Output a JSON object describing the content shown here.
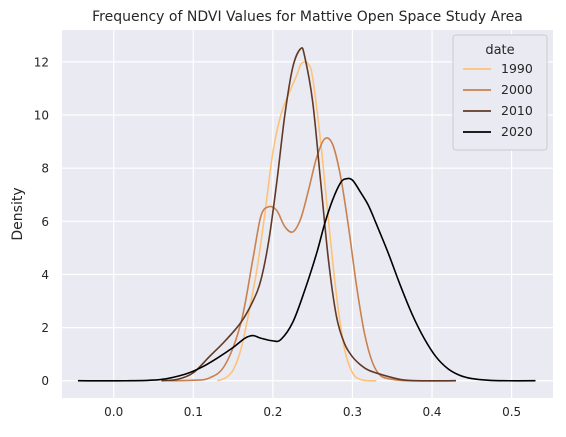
{
  "chart_data": {
    "type": "line",
    "title": "Frequency of NDVI Values for Mattive Open Space Study Area",
    "xlabel": "",
    "ylabel": "Density",
    "xlim": [
      -0.065,
      0.552
    ],
    "ylim": [
      -0.65,
      13.2
    ],
    "x_ticks": [
      0.0,
      0.1,
      0.2,
      0.3,
      0.4,
      0.5
    ],
    "x_tick_labels": [
      "0.0",
      "0.1",
      "0.2",
      "0.3",
      "0.4",
      "0.5"
    ],
    "y_ticks": [
      0,
      2,
      4,
      6,
      8,
      10,
      12
    ],
    "y_tick_labels": [
      "0",
      "2",
      "4",
      "6",
      "8",
      "10",
      "12"
    ],
    "grid": true,
    "background": "#eaeaf2",
    "legend": {
      "title": "date",
      "position": "top-right"
    },
    "series": [
      {
        "name": "1990",
        "color": "#fdc27a",
        "points": [
          [
            0.13,
            0.0
          ],
          [
            0.14,
            0.1
          ],
          [
            0.15,
            0.4
          ],
          [
            0.16,
            1.2
          ],
          [
            0.17,
            2.6
          ],
          [
            0.18,
            4.2
          ],
          [
            0.19,
            6.3
          ],
          [
            0.2,
            8.6
          ],
          [
            0.21,
            10.0
          ],
          [
            0.22,
            10.8
          ],
          [
            0.23,
            11.5
          ],
          [
            0.235,
            11.9
          ],
          [
            0.24,
            12.0
          ],
          [
            0.245,
            11.9
          ],
          [
            0.25,
            11.4
          ],
          [
            0.26,
            9.0
          ],
          [
            0.27,
            6.0
          ],
          [
            0.28,
            3.2
          ],
          [
            0.29,
            1.2
          ],
          [
            0.3,
            0.3
          ],
          [
            0.31,
            0.05
          ],
          [
            0.32,
            0.0
          ],
          [
            0.33,
            0.0
          ]
        ]
      },
      {
        "name": "2000",
        "color": "#c98150",
        "points": [
          [
            0.07,
            0.0
          ],
          [
            0.1,
            0.02
          ],
          [
            0.12,
            0.1
          ],
          [
            0.14,
            0.6
          ],
          [
            0.16,
            2.2
          ],
          [
            0.175,
            4.6
          ],
          [
            0.185,
            6.2
          ],
          [
            0.195,
            6.55
          ],
          [
            0.205,
            6.4
          ],
          [
            0.215,
            5.8
          ],
          [
            0.225,
            5.6
          ],
          [
            0.235,
            6.1
          ],
          [
            0.245,
            7.2
          ],
          [
            0.255,
            8.4
          ],
          [
            0.265,
            9.1
          ],
          [
            0.275,
            8.9
          ],
          [
            0.285,
            7.7
          ],
          [
            0.295,
            5.8
          ],
          [
            0.305,
            3.6
          ],
          [
            0.315,
            1.8
          ],
          [
            0.325,
            0.7
          ],
          [
            0.335,
            0.2
          ],
          [
            0.35,
            0.05
          ],
          [
            0.37,
            0.0
          ],
          [
            0.43,
            0.0
          ]
        ]
      },
      {
        "name": "2010",
        "color": "#613924",
        "points": [
          [
            0.06,
            0.0
          ],
          [
            0.08,
            0.05
          ],
          [
            0.1,
            0.3
          ],
          [
            0.12,
            0.9
          ],
          [
            0.14,
            1.5
          ],
          [
            0.16,
            2.2
          ],
          [
            0.175,
            3.0
          ],
          [
            0.185,
            3.8
          ],
          [
            0.195,
            5.3
          ],
          [
            0.205,
            7.5
          ],
          [
            0.215,
            10.0
          ],
          [
            0.225,
            11.8
          ],
          [
            0.235,
            12.5
          ],
          [
            0.24,
            12.2
          ],
          [
            0.25,
            10.5
          ],
          [
            0.26,
            7.5
          ],
          [
            0.27,
            4.5
          ],
          [
            0.28,
            2.4
          ],
          [
            0.29,
            1.4
          ],
          [
            0.3,
            0.9
          ],
          [
            0.31,
            0.6
          ],
          [
            0.32,
            0.4
          ],
          [
            0.34,
            0.2
          ],
          [
            0.36,
            0.05
          ],
          [
            0.38,
            0.0
          ],
          [
            0.43,
            0.0
          ]
        ]
      },
      {
        "name": "2020",
        "color": "#000000",
        "points": [
          [
            -0.045,
            0.0
          ],
          [
            0.02,
            0.0
          ],
          [
            0.06,
            0.05
          ],
          [
            0.09,
            0.25
          ],
          [
            0.11,
            0.5
          ],
          [
            0.13,
            0.85
          ],
          [
            0.15,
            1.25
          ],
          [
            0.165,
            1.6
          ],
          [
            0.175,
            1.7
          ],
          [
            0.185,
            1.6
          ],
          [
            0.2,
            1.5
          ],
          [
            0.21,
            1.55
          ],
          [
            0.225,
            2.2
          ],
          [
            0.24,
            3.4
          ],
          [
            0.255,
            4.8
          ],
          [
            0.265,
            5.9
          ],
          [
            0.275,
            6.8
          ],
          [
            0.285,
            7.45
          ],
          [
            0.292,
            7.6
          ],
          [
            0.3,
            7.55
          ],
          [
            0.31,
            7.1
          ],
          [
            0.32,
            6.6
          ],
          [
            0.33,
            5.9
          ],
          [
            0.345,
            4.8
          ],
          [
            0.36,
            3.6
          ],
          [
            0.375,
            2.5
          ],
          [
            0.39,
            1.6
          ],
          [
            0.405,
            0.9
          ],
          [
            0.42,
            0.45
          ],
          [
            0.435,
            0.2
          ],
          [
            0.45,
            0.08
          ],
          [
            0.47,
            0.02
          ],
          [
            0.49,
            0.0
          ],
          [
            0.53,
            0.0
          ]
        ]
      }
    ]
  }
}
